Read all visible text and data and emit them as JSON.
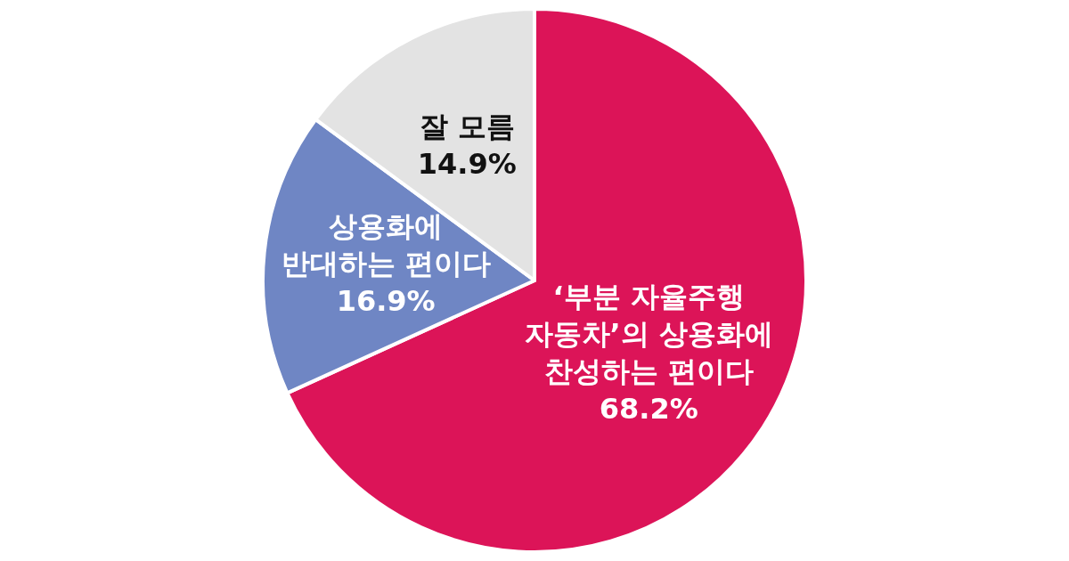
{
  "chart_data": {
    "type": "pie",
    "categories": [
      "‘부분 자율주행 자동차’의 상용화에 찬성하는 편이다",
      "상용화에 반대하는 편이다",
      "잘 모름"
    ],
    "values": [
      68.2,
      16.9,
      14.9
    ],
    "colors": [
      "#dc1458",
      "#6f86c4",
      "#e3e3e3"
    ],
    "value_labels": [
      "68.2%",
      "16.9%",
      "14.9%"
    ]
  }
}
